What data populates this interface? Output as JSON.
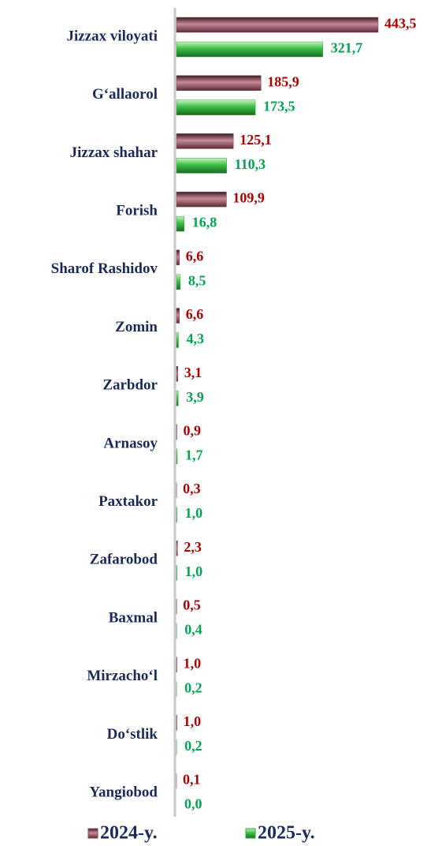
{
  "chart_data": {
    "type": "bar",
    "orientation": "horizontal",
    "categories": [
      "Jizzax viloyati",
      "G‘allaorol",
      "Jizzax shahar",
      "Forish",
      "Sharof Rashidov",
      "Zomin",
      "Zarbdor",
      "Arnasoy",
      "Paxtakor",
      "Zafarobod",
      "Baxmal",
      "Mirzacho‘l",
      "Do‘stlik",
      "Yangiobod"
    ],
    "series": [
      {
        "name": "2024-y.",
        "color": "#8a4858",
        "label_color": "#b00000",
        "values": [
          443.5,
          185.9,
          125.1,
          109.9,
          6.6,
          6.6,
          3.1,
          0.9,
          0.3,
          2.3,
          0.5,
          1.0,
          1.0,
          0.1
        ],
        "value_labels": [
          "443,5",
          "185,9",
          "125,1",
          "109,9",
          "6,6",
          "6,6",
          "3,1",
          "0,9",
          "0,3",
          "2,3",
          "0,5",
          "1,0",
          "1,0",
          "0,1"
        ]
      },
      {
        "name": "2025-y.",
        "color": "#2eaa3a",
        "label_color": "#00a650",
        "values": [
          321.7,
          173.5,
          110.3,
          16.8,
          8.5,
          4.3,
          3.9,
          1.7,
          1.0,
          1.0,
          0.4,
          0.2,
          0.2,
          0.0
        ],
        "value_labels": [
          "321,7",
          "173,5",
          "110,3",
          "16,8",
          "8,5",
          "4,3",
          "3,9",
          "1,7",
          "1,0",
          "1,0",
          "0,4",
          "0,2",
          "0,2",
          "0,0"
        ]
      }
    ]
  }
}
